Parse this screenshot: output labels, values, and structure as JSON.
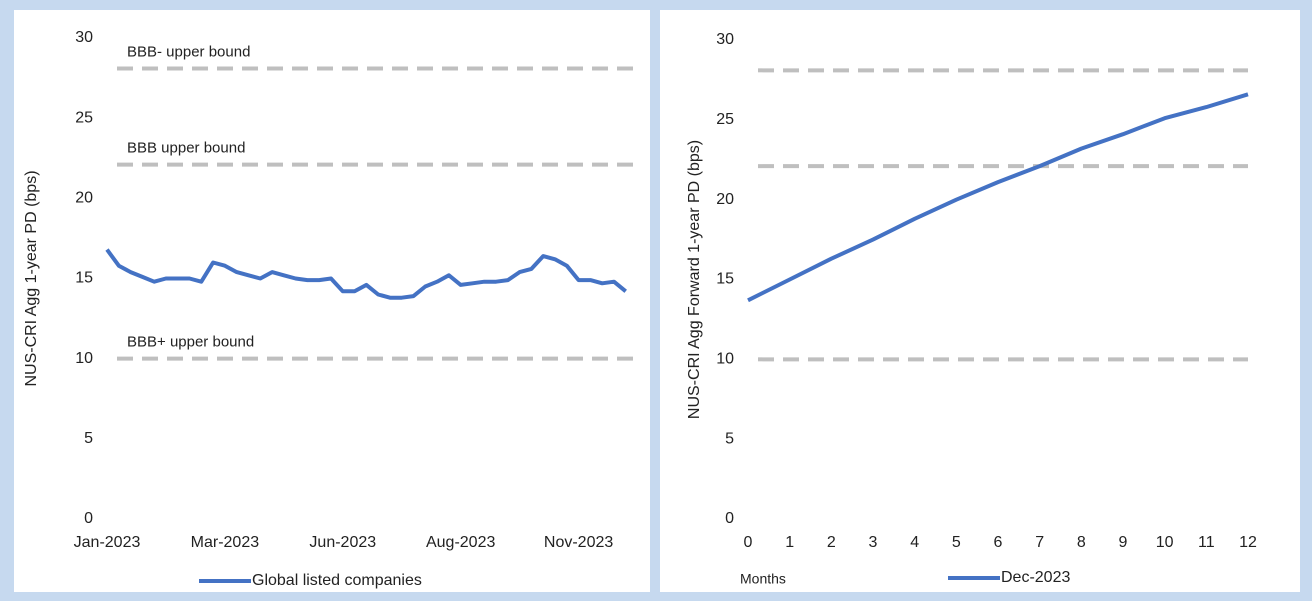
{
  "chart_data": [
    {
      "type": "line",
      "ylabel": "NUS-CRI Agg 1-year PD (bps)",
      "categories": [
        "Jan-2023",
        null,
        null,
        null,
        null,
        null,
        null,
        null,
        null,
        null,
        "Mar-2023",
        null,
        null,
        null,
        null,
        null,
        null,
        null,
        null,
        null,
        "Jun-2023",
        null,
        null,
        null,
        null,
        null,
        null,
        null,
        null,
        null,
        "Aug-2023",
        null,
        null,
        null,
        null,
        null,
        null,
        null,
        null,
        null,
        "Nov-2023",
        null,
        null,
        null,
        null
      ],
      "series": [
        {
          "name": "Global listed companies",
          "color": "#4472c4",
          "values": [
            16.8,
            15.8,
            15.4,
            15.1,
            14.8,
            15.0,
            15.0,
            15.0,
            14.8,
            16.0,
            15.8,
            15.4,
            15.2,
            15.0,
            15.4,
            15.2,
            15.0,
            14.9,
            14.9,
            15.0,
            14.2,
            14.2,
            14.6,
            14.0,
            13.8,
            13.8,
            13.9,
            14.5,
            14.8,
            15.2,
            14.6,
            14.7,
            14.8,
            14.8,
            14.9,
            15.4,
            15.6,
            16.4,
            16.2,
            15.8,
            14.9,
            14.9,
            14.7,
            14.8,
            14.2
          ]
        }
      ],
      "ylim": [
        0,
        30
      ],
      "yticks": [
        0,
        5,
        10,
        15,
        20,
        25,
        30
      ],
      "reference_lines": [
        {
          "value": 28.1,
          "label": "BBB- upper bound"
        },
        {
          "value": 22.1,
          "label": "BBB upper bound"
        },
        {
          "value": 10,
          "label": "BBB+ upper bound"
        }
      ]
    },
    {
      "type": "line",
      "ylabel": "NUS-CRI Agg Forward 1-year PD (bps)",
      "xlabel": "Months",
      "x": [
        0,
        1,
        2,
        3,
        4,
        5,
        6,
        7,
        8,
        9,
        10,
        11,
        12
      ],
      "series": [
        {
          "name": "Dec-2023",
          "color": "#4472c4",
          "values": [
            13.7,
            15.0,
            16.3,
            17.5,
            18.8,
            20.0,
            21.1,
            22.1,
            23.2,
            24.1,
            25.1,
            25.8,
            26.6
          ]
        }
      ],
      "xlim": [
        0,
        12
      ],
      "xticks": [
        0,
        1,
        2,
        3,
        4,
        5,
        6,
        7,
        8,
        9,
        10,
        11,
        12
      ],
      "ylim": [
        0,
        30
      ],
      "yticks": [
        0,
        5,
        10,
        15,
        20,
        25,
        30
      ],
      "reference_lines": [
        {
          "value": 28.1
        },
        {
          "value": 22.1
        },
        {
          "value": 10
        }
      ]
    }
  ]
}
